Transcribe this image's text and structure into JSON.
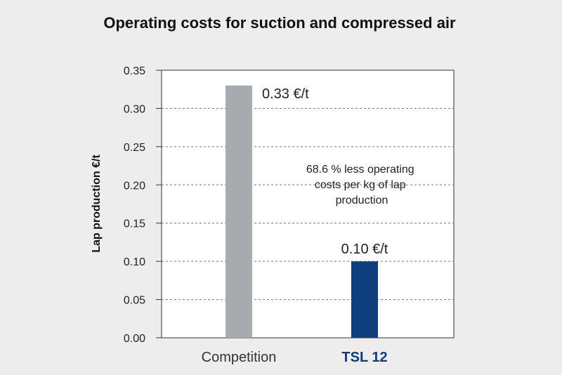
{
  "chart_data": {
    "type": "bar",
    "title": "Operating costs for suction and compressed air",
    "ylabel": "Lap production €/t",
    "xlabel": "",
    "ylim": [
      0,
      0.35
    ],
    "yticks": [
      "0.00",
      "0.05",
      "0.10",
      "0.15",
      "0.20",
      "0.25",
      "0.30",
      "0.35"
    ],
    "grid": true,
    "categories": [
      "Competition",
      "TSL 12"
    ],
    "values": [
      0.33,
      0.1
    ],
    "colors": [
      "#a7abaf",
      "#0e3e7b"
    ],
    "data_labels": [
      "0.33 €/t",
      "0.10 €/t"
    ],
    "annotation": [
      "68.6 % less operating",
      "costs per kg of lap",
      "production"
    ]
  }
}
